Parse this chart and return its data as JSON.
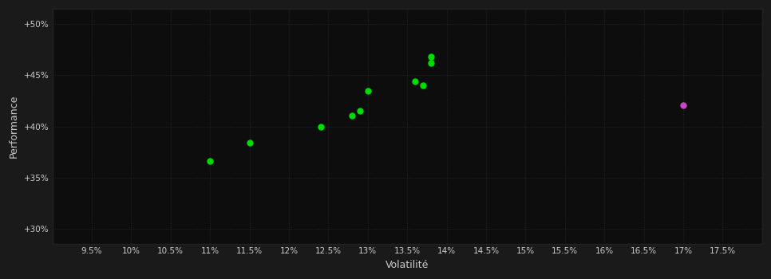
{
  "outer_bg_color": "#1a1a1a",
  "plot_bg_color": "#0d0d0d",
  "grid_color": "#2a2a2a",
  "text_color": "#cccccc",
  "xlabel": "Volatilité",
  "ylabel": "Performance",
  "xlim": [
    0.09,
    0.18
  ],
  "ylim": [
    0.285,
    0.515
  ],
  "xticks": [
    0.095,
    0.1,
    0.105,
    0.11,
    0.115,
    0.12,
    0.125,
    0.13,
    0.135,
    0.14,
    0.145,
    0.15,
    0.155,
    0.16,
    0.165,
    0.17,
    0.175
  ],
  "xtick_labels": [
    "9.5%",
    "10%",
    "10.5%",
    "11%",
    "11.5%",
    "12%",
    "12.5%",
    "13%",
    "13.5%",
    "14%",
    "14.5%",
    "15%",
    "15.5%",
    "16%",
    "16.5%",
    "17%",
    "17.5%"
  ],
  "yticks": [
    0.3,
    0.35,
    0.4,
    0.45,
    0.5
  ],
  "ytick_labels": [
    "+30%",
    "+35%",
    "+40%",
    "+45%",
    "+50%"
  ],
  "green_points": [
    [
      0.11,
      0.366
    ],
    [
      0.115,
      0.384
    ],
    [
      0.124,
      0.4
    ],
    [
      0.128,
      0.411
    ],
    [
      0.129,
      0.415
    ],
    [
      0.13,
      0.435
    ],
    [
      0.136,
      0.444
    ],
    [
      0.137,
      0.44
    ],
    [
      0.138,
      0.462
    ],
    [
      0.138,
      0.468
    ]
  ],
  "purple_point": [
    0.17,
    0.421
  ],
  "green_color": "#00dd00",
  "purple_color": "#cc44cc",
  "point_size": 25
}
